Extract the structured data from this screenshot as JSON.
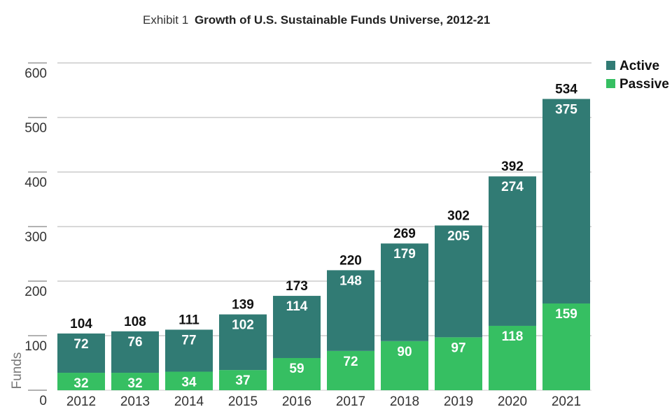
{
  "chart_data": {
    "type": "bar",
    "stacked": true,
    "title_prefix": "Exhibit 1",
    "title": "Growth of U.S. Sustainable Funds Universe, 2012-21",
    "xlabel": "",
    "ylabel": "Funds",
    "ylim": [
      0,
      600
    ],
    "yticks": [
      0,
      100,
      200,
      300,
      400,
      500,
      600
    ],
    "grid": true,
    "legend_position": "top-right",
    "categories": [
      "2012",
      "2013",
      "2014",
      "2015",
      "2016",
      "2017",
      "2018",
      "2019",
      "2020",
      "2021"
    ],
    "series": [
      {
        "name": "Passive",
        "color": "#36bf62",
        "values": [
          32,
          32,
          34,
          37,
          59,
          72,
          90,
          97,
          118,
          159
        ]
      },
      {
        "name": "Active",
        "color": "#317b74",
        "values": [
          72,
          76,
          77,
          102,
          114,
          148,
          179,
          205,
          274,
          375
        ]
      }
    ],
    "totals": [
      104,
      108,
      111,
      139,
      173,
      220,
      269,
      302,
      392,
      534
    ]
  }
}
